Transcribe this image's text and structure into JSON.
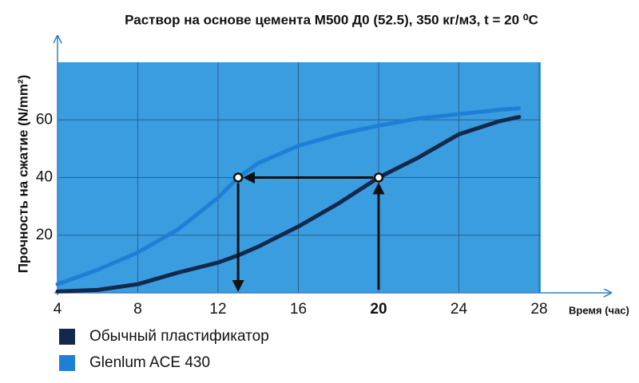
{
  "chart_data": {
    "type": "line",
    "title": "Раствор на основе цемента М500 Д0 (52.5), 350 кг/м3, t = 20 ⁰C",
    "y_label": "Прочность на сжатие (N/mm²)",
    "x_label": "Время (час)",
    "x": [
      4,
      6,
      8,
      10,
      12,
      13,
      14,
      16,
      18,
      20,
      22,
      24,
      26,
      27
    ],
    "series": [
      {
        "name": "Обычный пластификатор",
        "color": "#13294b",
        "values": [
          0.5,
          1,
          3,
          7,
          10.5,
          13,
          16,
          23,
          31,
          40,
          47,
          55,
          59.5,
          61
        ]
      },
      {
        "name": "Glenlum ACE 430",
        "color": "#1e7fd6",
        "values": [
          3,
          8,
          14,
          22,
          33,
          40,
          45,
          51,
          55,
          58,
          60.5,
          62,
          63.5,
          64
        ]
      }
    ],
    "markers": [
      {
        "x": 13,
        "y": 40
      },
      {
        "x": 20,
        "y": 40
      }
    ],
    "xlim": [
      4,
      28
    ],
    "xticks": [
      4,
      8,
      12,
      16,
      20,
      24,
      28
    ],
    "highlight_x": 20,
    "ylim": [
      0,
      80
    ],
    "yticks": [
      20,
      40,
      60
    ],
    "grid": true,
    "background": "#3a9de0"
  }
}
